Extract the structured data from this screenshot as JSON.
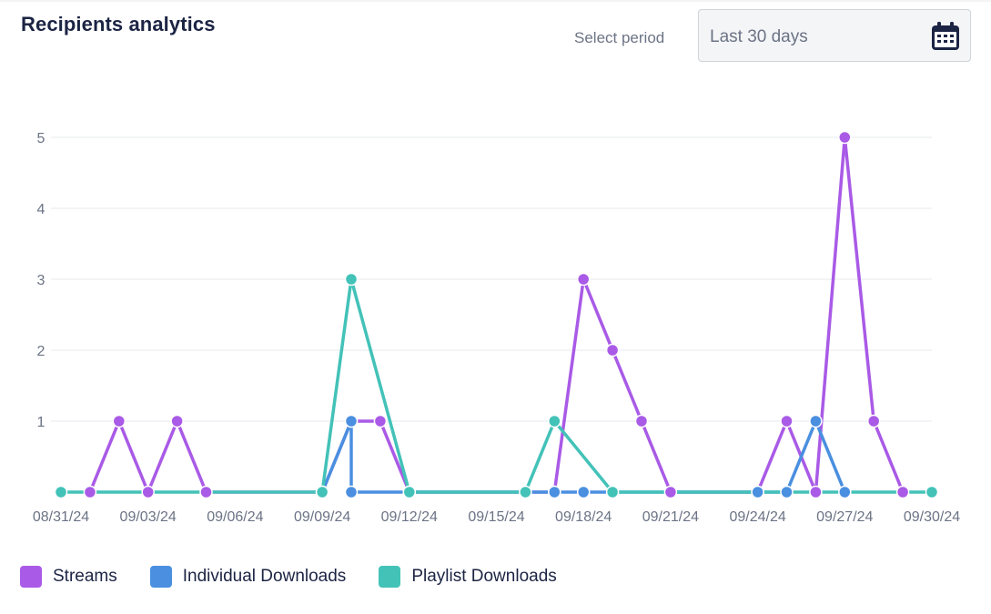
{
  "header": {
    "title": "Recipients analytics",
    "period_label": "Select period",
    "period_value": "Last 30 days",
    "calendar_icon": "calendar-icon"
  },
  "colors": {
    "streams": "#a95ae6",
    "individual": "#4a8fe0",
    "playlist": "#43c2b8",
    "grid": "#eef0f3",
    "tick": "#6b7385"
  },
  "chart_data": {
    "type": "line",
    "title": "",
    "xlabel": "",
    "ylabel": "",
    "x_start": "08/31/24",
    "x_ticks": [
      "08/31/24",
      "09/03/24",
      "09/06/24",
      "09/09/24",
      "09/12/24",
      "09/15/24",
      "09/18/24",
      "09/21/24",
      "09/24/24",
      "09/27/24",
      "09/30/24"
    ],
    "y_ticks": [
      1,
      2,
      3,
      4,
      5
    ],
    "ylim": [
      0,
      5
    ],
    "grid": true,
    "legend_position": "bottom-left",
    "series": [
      {
        "name": "Streams",
        "color_key": "streams",
        "points": [
          [
            "09/01/24",
            0
          ],
          [
            "09/02/24",
            1
          ],
          [
            "09/03/24",
            0
          ],
          [
            "09/04/24",
            1
          ],
          [
            "09/05/24",
            0
          ],
          [
            "09/09/24",
            0
          ],
          [
            "09/10/24",
            1
          ],
          [
            "09/11/24",
            1
          ],
          [
            "09/12/24",
            0
          ],
          [
            "09/17/24",
            0
          ],
          [
            "09/18/24",
            3
          ],
          [
            "09/19/24",
            2
          ],
          [
            "09/20/24",
            1
          ],
          [
            "09/21/24",
            0
          ],
          [
            "09/24/24",
            0
          ],
          [
            "09/25/24",
            1
          ],
          [
            "09/26/24",
            0
          ],
          [
            "09/27/24",
            5
          ],
          [
            "09/28/24",
            1
          ],
          [
            "09/29/24",
            0
          ]
        ]
      },
      {
        "name": "Individual Downloads",
        "color_key": "individual",
        "points": [
          [
            "09/09/24",
            0
          ],
          [
            "09/10/24",
            1
          ],
          [
            "09/10/24",
            0
          ],
          [
            "09/12/24",
            0
          ],
          [
            "09/17/24",
            0
          ],
          [
            "09/18/24",
            0
          ],
          [
            "09/24/24",
            0
          ],
          [
            "09/25/24",
            0
          ],
          [
            "09/26/24",
            1
          ],
          [
            "09/27/24",
            0
          ]
        ]
      },
      {
        "name": "Playlist Downloads",
        "color_key": "playlist",
        "points": [
          [
            "08/31/24",
            0
          ],
          [
            "09/09/24",
            0
          ],
          [
            "09/10/24",
            3
          ],
          [
            "09/12/24",
            0
          ],
          [
            "09/16/24",
            0
          ],
          [
            "09/17/24",
            1
          ],
          [
            "09/19/24",
            0
          ],
          [
            "09/30/24",
            0
          ]
        ]
      }
    ]
  },
  "legend": {
    "items": [
      {
        "label": "Streams",
        "color_key": "streams"
      },
      {
        "label": "Individual Downloads",
        "color_key": "individual"
      },
      {
        "label": "Playlist Downloads",
        "color_key": "playlist"
      }
    ]
  }
}
